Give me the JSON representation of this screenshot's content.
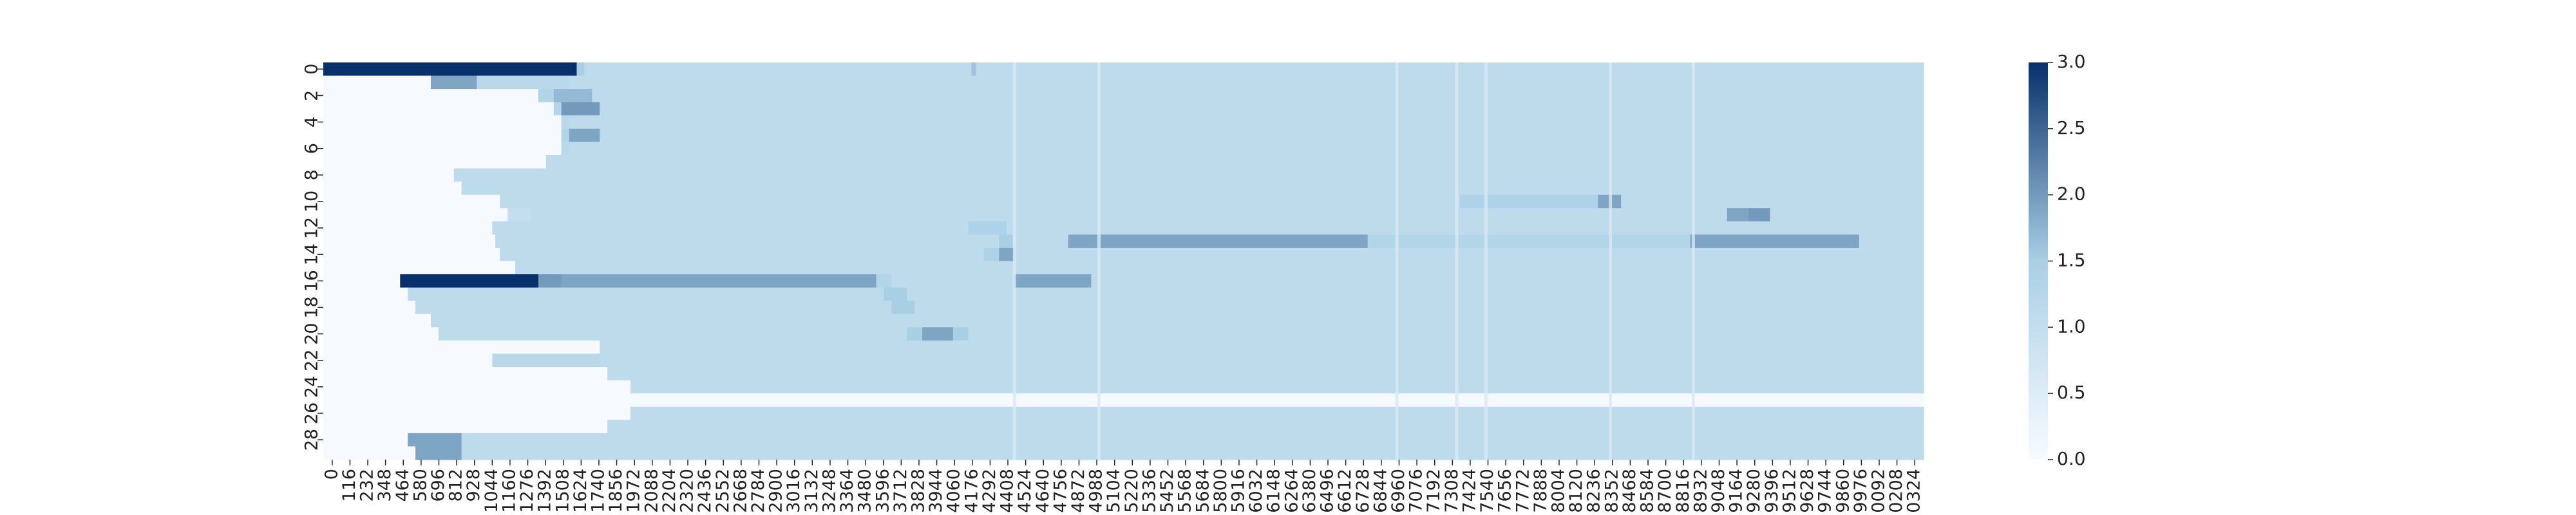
{
  "chart_data": {
    "type": "heatmap",
    "title": "",
    "xlabel": "",
    "ylabel": "",
    "colormap": "Blues",
    "colors": {
      "low": "#f7fbff",
      "mid": "#a9cfe5",
      "high": "#08306b"
    },
    "value_range": [
      0,
      3.0
    ],
    "colorbar_ticks": [
      "0.0",
      "0.5",
      "1.0",
      "1.5",
      "2.0",
      "2.5",
      "3.0"
    ],
    "rows": 30,
    "columns": 10420,
    "column_step_per_cell": 10,
    "y_tick_labels": [
      "0",
      "2",
      "4",
      "6",
      "8",
      "10",
      "12",
      "14",
      "16",
      "18",
      "20",
      "22",
      "24",
      "26",
      "28"
    ],
    "x_tick_labels": [
      "0",
      "116",
      "232",
      "348",
      "464",
      "580",
      "696",
      "812",
      "928",
      "1044",
      "1160",
      "1276",
      "1392",
      "1508",
      "1624",
      "1740",
      "1856",
      "1972",
      "2088",
      "2204",
      "2320",
      "2436",
      "2552",
      "2668",
      "2784",
      "2900",
      "3016",
      "3132",
      "3248",
      "3364",
      "3480",
      "3596",
      "3712",
      "3828",
      "3944",
      "4060",
      "4176",
      "4292",
      "4408",
      "4524",
      "4640",
      "4756",
      "4872",
      "4988",
      "5104",
      "5220",
      "5336",
      "5452",
      "5568",
      "5684",
      "5800",
      "5916",
      "6032",
      "6148",
      "6264",
      "6380",
      "6496",
      "6612",
      "6728",
      "6844",
      "6960",
      "7076",
      "7192",
      "7308",
      "7424",
      "7540",
      "7656",
      "7772",
      "7888",
      "8004",
      "8120",
      "8236",
      "8352",
      "8468",
      "8584",
      "8700",
      "8816",
      "8932",
      "9048",
      "9164",
      "9280",
      "9396",
      "9512",
      "9628",
      "9744",
      "9860",
      "9976",
      "0092",
      "0208",
      "0324"
    ],
    "row_segments": [
      [
        [
          0,
          1650,
          3.0
        ],
        [
          1650,
          1700,
          1.5
        ],
        [
          1700,
          4220,
          1.1
        ],
        [
          4220,
          4250,
          1.6
        ],
        [
          4250,
          10420,
          1.1
        ]
      ],
      [
        [
          0,
          700,
          0.02
        ],
        [
          700,
          1000,
          1.9
        ],
        [
          1000,
          1600,
          1.2
        ],
        [
          1600,
          10420,
          1.1
        ]
      ],
      [
        [
          0,
          1400,
          0.02
        ],
        [
          1400,
          1500,
          1.3
        ],
        [
          1500,
          1750,
          1.7
        ],
        [
          1750,
          10420,
          1.1
        ]
      ],
      [
        [
          0,
          1500,
          0.02
        ],
        [
          1500,
          1550,
          1.3
        ],
        [
          1550,
          1800,
          2.0
        ],
        [
          1800,
          10420,
          1.1
        ]
      ],
      [
        [
          0,
          1550,
          0.02
        ],
        [
          1550,
          1600,
          1.2
        ],
        [
          1600,
          1800,
          1.1
        ],
        [
          1800,
          10420,
          1.1
        ]
      ],
      [
        [
          0,
          1550,
          0.02
        ],
        [
          1550,
          1600,
          1.3
        ],
        [
          1600,
          1800,
          1.9
        ],
        [
          1800,
          10420,
          1.1
        ]
      ],
      [
        [
          0,
          1550,
          0.02
        ],
        [
          1550,
          1600,
          1.2
        ],
        [
          1600,
          10420,
          1.1
        ]
      ],
      [
        [
          0,
          1450,
          0.02
        ],
        [
          1450,
          10420,
          1.1
        ]
      ],
      [
        [
          0,
          850,
          0.02
        ],
        [
          850,
          10420,
          1.1
        ]
      ],
      [
        [
          0,
          900,
          0.02
        ],
        [
          900,
          10420,
          1.1
        ]
      ],
      [
        [
          0,
          1150,
          0.02
        ],
        [
          1150,
          7400,
          1.1
        ],
        [
          7400,
          8300,
          1.4
        ],
        [
          8300,
          8450,
          1.9
        ],
        [
          8450,
          10420,
          1.1
        ]
      ],
      [
        [
          0,
          1200,
          0.02
        ],
        [
          1200,
          1350,
          1.0
        ],
        [
          1350,
          9140,
          1.1
        ],
        [
          9140,
          9280,
          1.9
        ],
        [
          9280,
          9280,
          1.1
        ],
        [
          9280,
          9420,
          2.0
        ],
        [
          9420,
          10420,
          1.1
        ]
      ],
      [
        [
          0,
          1100,
          0.02
        ],
        [
          1100,
          4200,
          1.1
        ],
        [
          4200,
          4450,
          1.4
        ],
        [
          4450,
          10420,
          1.1
        ]
      ],
      [
        [
          0,
          1120,
          0.02
        ],
        [
          1120,
          4400,
          1.1
        ],
        [
          4400,
          4500,
          1.5
        ],
        [
          4500,
          4850,
          1.1
        ],
        [
          4850,
          6800,
          1.9
        ],
        [
          6800,
          8900,
          1.3
        ],
        [
          8900,
          10000,
          1.9
        ],
        [
          10000,
          10420,
          1.1
        ]
      ],
      [
        [
          0,
          1150,
          0.02
        ],
        [
          1150,
          4300,
          1.1
        ],
        [
          4300,
          4400,
          1.4
        ],
        [
          4400,
          4500,
          1.9
        ],
        [
          4500,
          10420,
          1.1
        ]
      ],
      [
        [
          0,
          1250,
          0.02
        ],
        [
          1250,
          4600,
          1.1
        ],
        [
          4600,
          10420,
          1.1
        ]
      ],
      [
        [
          0,
          500,
          0.02
        ],
        [
          500,
          1400,
          3.0
        ],
        [
          1400,
          1550,
          2.0
        ],
        [
          1550,
          3600,
          1.9
        ],
        [
          3600,
          3700,
          1.3
        ],
        [
          3700,
          4500,
          1.1
        ],
        [
          4500,
          5000,
          1.9
        ],
        [
          5000,
          10420,
          1.1
        ]
      ],
      [
        [
          0,
          550,
          0.02
        ],
        [
          550,
          3650,
          1.1
        ],
        [
          3650,
          3800,
          1.5
        ],
        [
          3800,
          10420,
          1.1
        ]
      ],
      [
        [
          0,
          600,
          0.02
        ],
        [
          600,
          3700,
          1.1
        ],
        [
          3700,
          3850,
          1.5
        ],
        [
          3850,
          10420,
          1.1
        ]
      ],
      [
        [
          0,
          700,
          0.02
        ],
        [
          700,
          10420,
          1.1
        ]
      ],
      [
        [
          0,
          750,
          0.02
        ],
        [
          750,
          3800,
          1.1
        ],
        [
          3800,
          3900,
          1.5
        ],
        [
          3900,
          4100,
          1.9
        ],
        [
          4100,
          4200,
          1.5
        ],
        [
          4200,
          10420,
          1.1
        ]
      ],
      [
        [
          0,
          1800,
          0.02
        ],
        [
          1800,
          10420,
          1.1
        ]
      ],
      [
        [
          0,
          1100,
          0.02
        ],
        [
          1100,
          1800,
          1.2
        ],
        [
          1800,
          10420,
          1.1
        ]
      ],
      [
        [
          0,
          1850,
          0.02
        ],
        [
          1850,
          10420,
          1.1
        ]
      ],
      [
        [
          0,
          2000,
          0.02
        ],
        [
          2000,
          10420,
          1.1
        ]
      ],
      [
        [
          0,
          10420,
          0.02
        ]
      ],
      [
        [
          0,
          2000,
          0.02
        ],
        [
          2000,
          10420,
          1.1
        ]
      ],
      [
        [
          0,
          1850,
          0.02
        ],
        [
          1850,
          10420,
          1.1
        ]
      ],
      [
        [
          0,
          550,
          0.02
        ],
        [
          550,
          900,
          1.9
        ],
        [
          900,
          10420,
          1.1
        ]
      ],
      [
        [
          0,
          600,
          0.02
        ],
        [
          600,
          900,
          1.9
        ],
        [
          900,
          10420,
          1.1
        ]
      ]
    ],
    "column_gaps": [
      4490,
      5040,
      6980,
      7370,
      7560,
      8370,
      8910
    ]
  }
}
